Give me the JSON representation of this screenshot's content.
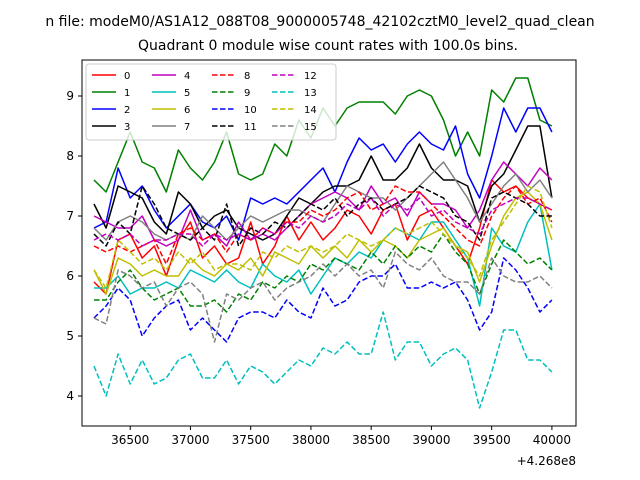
{
  "chart_data": {
    "type": "line",
    "suptitle": "n file: modeM0/AS1A12_088T08_9000005748_42102cztM0_level2_quad_clean",
    "title": "Quadrant 0 module wise count rates with 100.0s bins.",
    "xlabel": "",
    "ylabel": "",
    "x_offset_label": "+4.268e8",
    "xlim": [
      36100,
      40200
    ],
    "ylim": [
      3.5,
      9.6
    ],
    "x_ticks": [
      36500,
      37000,
      37500,
      38000,
      38500,
      39000,
      39500,
      40000
    ],
    "x_tick_labels": [
      "36500",
      "37000",
      "37500",
      "38000",
      "38500",
      "39000",
      "39500",
      "40000"
    ],
    "y_ticks": [
      4,
      5,
      6,
      7,
      8,
      9
    ],
    "y_tick_labels": [
      "4",
      "5",
      "6",
      "7",
      "8",
      "9"
    ],
    "grid": false,
    "legend_position": "top-left",
    "x": [
      36200,
      36300,
      36400,
      36500,
      36600,
      36700,
      36800,
      36900,
      37000,
      37100,
      37200,
      37300,
      37400,
      37500,
      37600,
      37700,
      37800,
      37900,
      38000,
      38100,
      38200,
      38300,
      38400,
      38500,
      38600,
      38700,
      38800,
      38900,
      39000,
      39100,
      39200,
      39300,
      39400,
      39500,
      39600,
      39700,
      39800,
      39900,
      40000
    ],
    "series": [
      {
        "name": "0",
        "color": "#ff0000",
        "dash": "solid",
        "values": [
          5.9,
          5.7,
          6.6,
          6.7,
          6.3,
          6.5,
          6.0,
          6.6,
          6.9,
          6.3,
          6.5,
          6.2,
          6.3,
          6.9,
          6.2,
          6.5,
          7.0,
          6.6,
          6.9,
          6.6,
          6.8,
          7.1,
          7.0,
          6.7,
          7.1,
          7.2,
          6.6,
          7.0,
          7.1,
          6.8,
          6.5,
          6.2,
          6.8,
          7.6,
          7.4,
          7.5,
          7.3,
          7.2,
          7.1
        ]
      },
      {
        "name": "1",
        "color": "#008000",
        "dash": "solid",
        "values": [
          7.6,
          7.4,
          7.9,
          8.4,
          7.9,
          7.8,
          7.4,
          8.1,
          7.8,
          7.6,
          7.9,
          8.4,
          7.7,
          7.6,
          7.7,
          8.2,
          8.0,
          8.6,
          8.3,
          8.8,
          8.5,
          8.8,
          8.9,
          8.9,
          8.9,
          8.7,
          9.0,
          9.1,
          9.0,
          8.6,
          8.0,
          8.4,
          8.0,
          9.1,
          8.9,
          9.3,
          9.3,
          8.6,
          8.5
        ]
      },
      {
        "name": "2",
        "color": "#0000ff",
        "dash": "solid",
        "values": [
          6.8,
          6.9,
          7.8,
          7.3,
          7.5,
          7.1,
          6.8,
          7.0,
          7.2,
          6.9,
          6.8,
          7.0,
          6.6,
          7.3,
          7.2,
          7.3,
          7.2,
          7.4,
          7.6,
          7.8,
          7.4,
          7.9,
          8.3,
          8.1,
          8.2,
          7.9,
          8.2,
          8.4,
          8.2,
          8.1,
          8.5,
          7.7,
          7.3,
          8.0,
          8.8,
          8.4,
          8.8,
          8.8,
          8.4
        ]
      },
      {
        "name": "3",
        "color": "#000000",
        "dash": "solid",
        "values": [
          7.2,
          6.8,
          7.5,
          7.4,
          7.3,
          6.9,
          6.7,
          7.4,
          7.2,
          6.8,
          7.0,
          7.1,
          6.8,
          6.7,
          6.6,
          6.7,
          7.0,
          7.3,
          7.2,
          7.4,
          7.5,
          7.5,
          7.6,
          8.0,
          7.6,
          7.6,
          7.8,
          8.2,
          7.8,
          7.6,
          7.6,
          7.5,
          6.9,
          7.5,
          7.7,
          8.1,
          8.5,
          8.5,
          7.3
        ]
      },
      {
        "name": "4",
        "color": "#c000c0",
        "dash": "solid",
        "values": [
          7.0,
          6.9,
          6.8,
          6.8,
          7.0,
          6.6,
          6.5,
          6.6,
          7.1,
          6.6,
          6.7,
          6.5,
          6.9,
          6.6,
          6.7,
          6.6,
          6.8,
          7.0,
          7.2,
          7.3,
          7.4,
          7.3,
          7.1,
          7.5,
          7.2,
          7.3,
          7.0,
          7.4,
          7.2,
          7.2,
          7.1,
          6.8,
          7.1,
          7.6,
          7.9,
          7.7,
          7.5,
          7.8,
          7.6
        ]
      },
      {
        "name": "5",
        "color": "#00bfbf",
        "dash": "solid",
        "values": [
          5.8,
          5.8,
          6.0,
          5.7,
          5.8,
          5.8,
          5.9,
          5.8,
          6.1,
          6.0,
          5.9,
          6.1,
          5.9,
          5.8,
          6.2,
          6.0,
          5.9,
          6.1,
          5.7,
          6.0,
          6.3,
          6.2,
          6.4,
          6.3,
          6.6,
          6.8,
          6.7,
          6.6,
          6.9,
          6.9,
          6.6,
          6.3,
          5.5,
          6.8,
          6.5,
          6.4,
          6.9,
          7.2,
          6.1
        ]
      },
      {
        "name": "6",
        "color": "#bfbf00",
        "dash": "solid",
        "values": [
          6.1,
          5.7,
          6.3,
          6.2,
          6.0,
          6.1,
          6.0,
          6.0,
          6.3,
          6.1,
          6.0,
          6.2,
          6.1,
          6.3,
          6.0,
          6.4,
          6.3,
          6.2,
          6.5,
          6.3,
          6.5,
          6.3,
          6.6,
          6.4,
          6.6,
          6.5,
          6.3,
          6.6,
          6.7,
          6.8,
          6.5,
          6.4,
          5.9,
          6.5,
          7.0,
          7.3,
          7.4,
          7.2,
          6.6
        ]
      },
      {
        "name": "7",
        "color": "#808080",
        "dash": "solid",
        "values": [
          6.8,
          6.6,
          6.9,
          7.0,
          6.9,
          6.7,
          6.6,
          6.7,
          6.6,
          7.0,
          6.8,
          6.6,
          6.8,
          7.0,
          6.9,
          7.0,
          7.1,
          7.1,
          7.0,
          6.9,
          7.2,
          7.5,
          7.4,
          7.3,
          7.3,
          7.1,
          7.3,
          7.5,
          7.7,
          7.9,
          7.6,
          7.3,
          6.9,
          7.2,
          7.5,
          7.7,
          7.4,
          7.6,
          7.3
        ]
      },
      {
        "name": "8",
        "color": "#ff0000",
        "dash": "dashed",
        "values": [
          6.5,
          6.4,
          6.5,
          6.4,
          6.5,
          6.6,
          6.2,
          6.7,
          6.8,
          6.6,
          6.7,
          6.4,
          6.7,
          6.6,
          6.8,
          6.7,
          6.9,
          6.9,
          7.1,
          7.0,
          7.1,
          7.3,
          7.4,
          7.1,
          7.2,
          7.5,
          7.4,
          7.4,
          7.2,
          7.0,
          6.8,
          6.6,
          6.5,
          7.0,
          7.3,
          7.5,
          7.2,
          7.3,
          6.9
        ]
      },
      {
        "name": "9",
        "color": "#008000",
        "dash": "dashed",
        "values": [
          5.6,
          5.6,
          5.9,
          6.1,
          5.8,
          5.6,
          5.7,
          5.8,
          5.5,
          5.5,
          5.6,
          5.4,
          5.7,
          5.6,
          5.9,
          5.8,
          6.0,
          5.9,
          6.2,
          6.1,
          6.3,
          6.2,
          6.1,
          6.4,
          6.2,
          6.5,
          6.3,
          6.5,
          6.4,
          6.7,
          6.4,
          6.2,
          5.7,
          6.2,
          6.6,
          6.4,
          6.2,
          6.3,
          6.1
        ]
      },
      {
        "name": "10",
        "color": "#0000ff",
        "dash": "dashed",
        "values": [
          5.3,
          5.5,
          5.8,
          5.6,
          5.0,
          5.3,
          5.5,
          5.6,
          5.1,
          5.3,
          5.1,
          4.9,
          5.3,
          5.4,
          5.4,
          5.3,
          5.6,
          5.4,
          5.3,
          5.8,
          5.5,
          5.6,
          5.9,
          6.0,
          6.0,
          6.2,
          5.8,
          5.8,
          5.9,
          5.8,
          5.9,
          5.6,
          5.1,
          5.4,
          6.3,
          6.1,
          5.8,
          5.4,
          5.6
        ]
      },
      {
        "name": "11",
        "color": "#000000",
        "dash": "dashed",
        "values": [
          6.7,
          6.5,
          6.9,
          6.7,
          7.5,
          7.2,
          6.8,
          6.7,
          6.6,
          6.8,
          6.6,
          7.2,
          6.5,
          6.8,
          6.7,
          6.9,
          6.8,
          7.0,
          7.2,
          7.1,
          7.3,
          7.0,
          7.2,
          7.3,
          7.1,
          7.2,
          7.3,
          7.5,
          7.4,
          7.3,
          7.0,
          6.9,
          6.6,
          7.3,
          7.4,
          7.3,
          7.2,
          7.0,
          7.0
        ]
      },
      {
        "name": "12",
        "color": "#c000c0",
        "dash": "dashed",
        "values": [
          6.6,
          6.7,
          6.6,
          6.7,
          6.5,
          6.6,
          6.6,
          6.7,
          6.7,
          6.5,
          6.7,
          6.6,
          6.7,
          6.6,
          6.8,
          6.7,
          6.9,
          6.8,
          7.0,
          6.9,
          7.0,
          7.2,
          7.1,
          7.3,
          7.0,
          7.2,
          7.1,
          7.3,
          7.0,
          7.1,
          6.9,
          6.8,
          6.7,
          7.1,
          7.2,
          7.3,
          7.3,
          7.2,
          7.1
        ]
      },
      {
        "name": "13",
        "color": "#00bfbf",
        "dash": "dashed",
        "values": [
          4.5,
          4.0,
          4.7,
          4.2,
          4.6,
          4.2,
          4.3,
          4.6,
          4.7,
          4.3,
          4.3,
          4.6,
          4.2,
          4.5,
          4.4,
          4.2,
          4.4,
          4.6,
          4.5,
          4.8,
          4.7,
          4.9,
          4.7,
          4.7,
          5.4,
          4.6,
          4.9,
          4.9,
          4.5,
          4.7,
          4.8,
          4.6,
          3.8,
          4.4,
          5.1,
          5.1,
          4.6,
          4.6,
          4.4
        ]
      },
      {
        "name": "14",
        "color": "#bfbf00",
        "dash": "dashed",
        "values": [
          6.1,
          5.8,
          6.6,
          6.4,
          6.2,
          6.3,
          6.1,
          6.4,
          6.2,
          6.4,
          6.1,
          6.2,
          6.2,
          6.1,
          6.4,
          6.3,
          6.5,
          6.4,
          6.5,
          6.4,
          6.5,
          6.7,
          6.6,
          6.5,
          6.6,
          6.8,
          6.7,
          6.8,
          6.9,
          6.7,
          6.5,
          6.3,
          6.0,
          6.6,
          6.9,
          7.2,
          7.5,
          7.4,
          6.8
        ]
      },
      {
        "name": "15",
        "color": "#808080",
        "dash": "dashed",
        "values": [
          5.3,
          5.2,
          6.1,
          6.0,
          5.8,
          5.9,
          5.5,
          5.8,
          5.9,
          5.7,
          4.9,
          5.7,
          5.6,
          5.8,
          5.9,
          5.6,
          5.8,
          5.9,
          6.0,
          6.2,
          6.0,
          6.2,
          6.0,
          6.1,
          5.8,
          6.4,
          6.2,
          6.1,
          6.3,
          6.0,
          5.9,
          5.9,
          5.7,
          6.3,
          6.0,
          5.9,
          5.9,
          6.0,
          5.8
        ]
      }
    ]
  }
}
